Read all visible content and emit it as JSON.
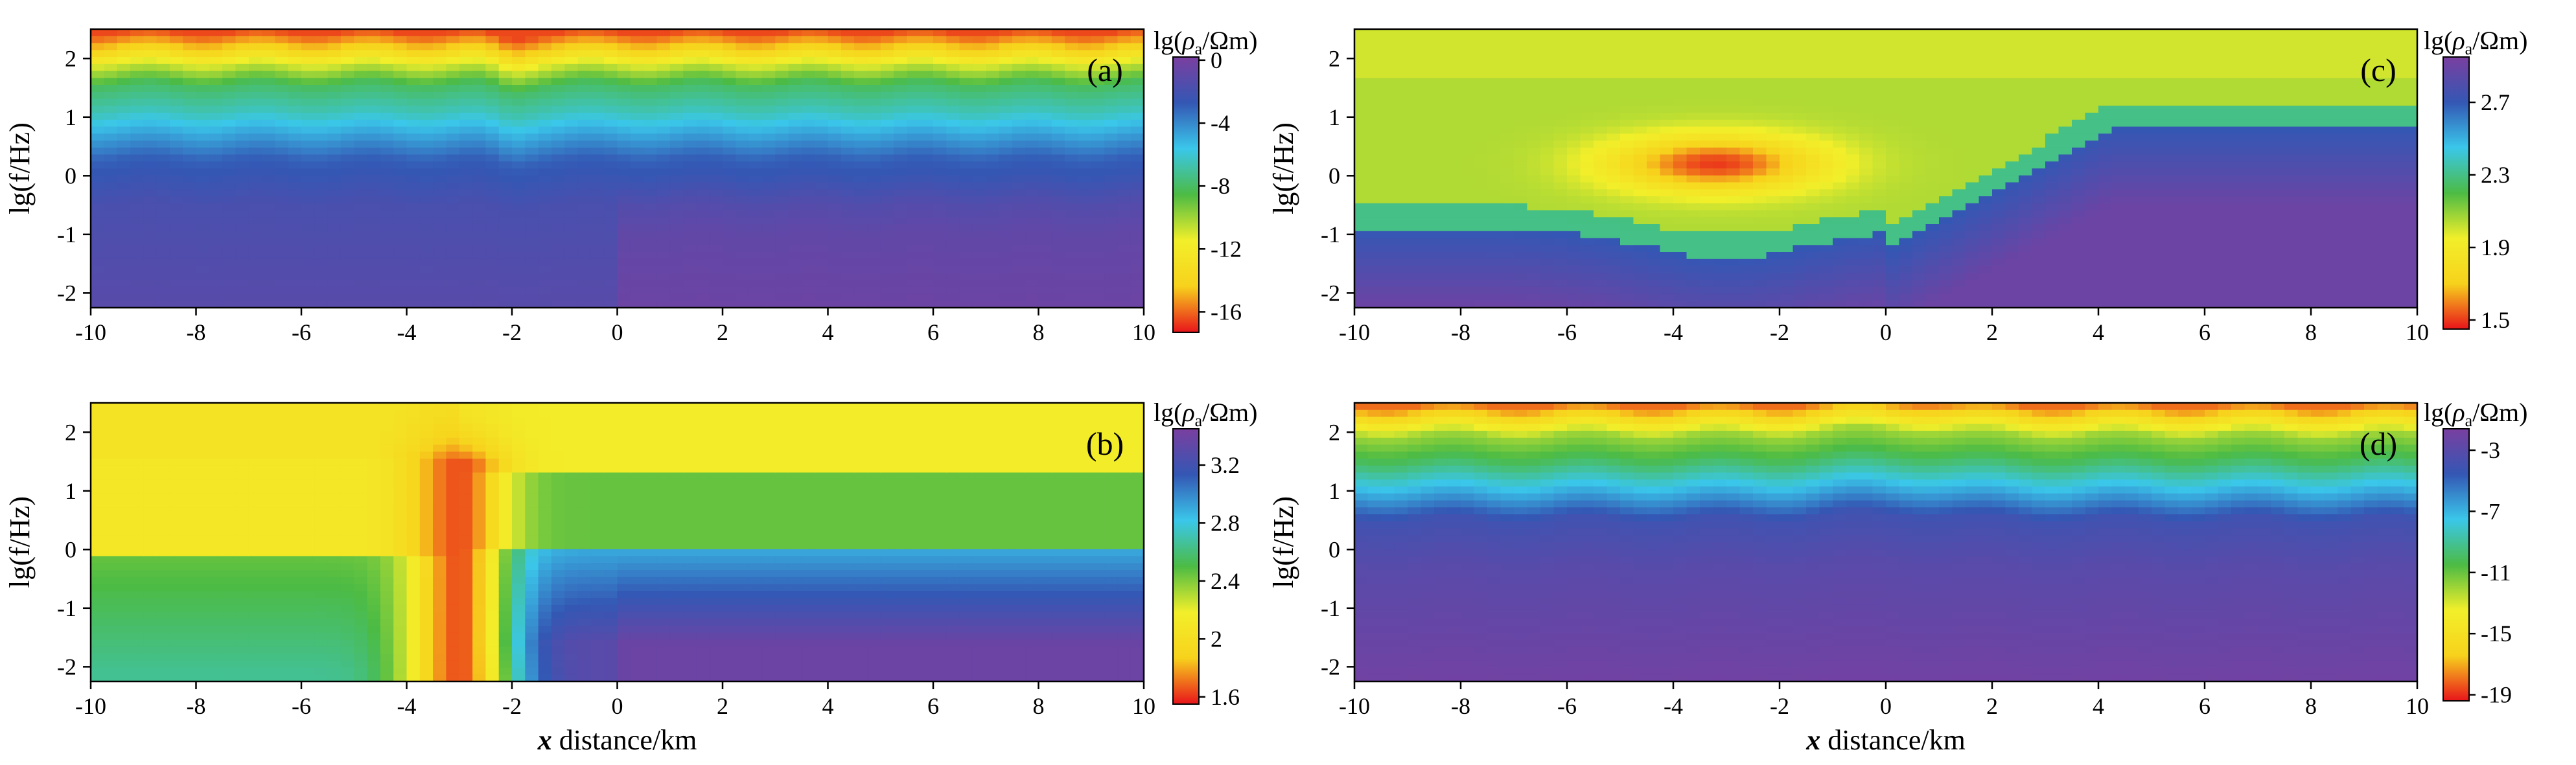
{
  "figure": {
    "xlabel_var": "x",
    "xlabel_rest": " distance/km",
    "colors": {
      "scale": [
        "#e8141b",
        "#f7d21c",
        "#f2ef2a",
        "#4cbb44",
        "#3ac7ea",
        "#3457b4",
        "#7a3fa0"
      ]
    }
  },
  "chart_data": [
    {
      "type": "heatmap",
      "panel": "(a)",
      "xlabel_var": "",
      "xlabel_rest": "",
      "ylabel": "lg(f/Hz)",
      "xlim": [
        -10,
        10
      ],
      "ylim": [
        -2.25,
        2.5
      ],
      "x_ticks": [
        -10,
        -8,
        -6,
        -4,
        -2,
        0,
        2,
        4,
        6,
        8,
        10
      ],
      "y_ticks": [
        2,
        1,
        0,
        -1,
        -2
      ],
      "colorbar": {
        "title": "lg(ρa/Ωm)",
        "ticks": [
          0,
          -4,
          -8,
          -12,
          -16
        ],
        "range": [
          -17.3,
          0.2
        ]
      },
      "description_bands": [
        {
          "lgf": 2.45,
          "value": -16.5
        },
        {
          "lgf": 2.15,
          "value": -14
        },
        {
          "lgf": 1.9,
          "value": -11
        },
        {
          "lgf": 1.55,
          "value": -8
        },
        {
          "lgf": 1.1,
          "value": -6.5
        },
        {
          "lgf": 0.65,
          "value": -4.5
        },
        {
          "lgf": 0.3,
          "value": -3
        },
        {
          "lgf": -0.5,
          "value": -1.8
        },
        {
          "lgf": -2.25,
          "value": -1.2
        }
      ]
    },
    {
      "type": "heatmap",
      "panel": "(b)",
      "xlabel_var": "x",
      "xlabel_rest": " distance/km",
      "ylabel": "lg(f/Hz)",
      "xlim": [
        -10,
        10
      ],
      "ylim": [
        -2.25,
        2.5
      ],
      "x_ticks": [
        -10,
        -8,
        -6,
        -4,
        -2,
        0,
        2,
        4,
        6,
        8,
        10
      ],
      "y_ticks": [
        2,
        1,
        0,
        -1,
        -2
      ],
      "colorbar": {
        "title": "lg(ρa/Ωm)",
        "ticks": [
          3.2,
          2.8,
          2.4,
          2,
          1.6
        ],
        "range": [
          1.55,
          3.45
        ]
      },
      "anomaly": {
        "x_center": -3,
        "value": 1.65
      }
    },
    {
      "type": "heatmap",
      "panel": "(c)",
      "xlabel_var": "",
      "xlabel_rest": "",
      "ylabel": "lg(f/Hz)",
      "xlim": [
        -10,
        10
      ],
      "ylim": [
        -2.25,
        2.5
      ],
      "x_ticks": [
        -10,
        -8,
        -6,
        -4,
        -2,
        0,
        2,
        4,
        6,
        8,
        10
      ],
      "y_ticks": [
        2,
        1,
        0,
        -1,
        -2
      ],
      "colorbar": {
        "title": "lg(ρa/Ωm)",
        "ticks": [
          2.7,
          2.3,
          1.9,
          1.5
        ],
        "range": [
          1.45,
          2.95
        ]
      },
      "anomaly": {
        "x_center": -3.2,
        "lgf_center": 0.2,
        "value": 1.5
      }
    },
    {
      "type": "heatmap",
      "panel": "(d)",
      "xlabel_var": "x",
      "xlabel_rest": " distance/km",
      "ylabel": "lg(f/Hz)",
      "xlim": [
        -10,
        10
      ],
      "ylim": [
        -2.25,
        2.5
      ],
      "x_ticks": [
        -10,
        -8,
        -6,
        -4,
        -2,
        0,
        2,
        4,
        6,
        8,
        10
      ],
      "y_ticks": [
        2,
        1,
        0,
        -1,
        -2
      ],
      "colorbar": {
        "title": "lg(ρa/Ωm)",
        "ticks": [
          -3,
          -7,
          -11,
          -15,
          -19
        ],
        "range": [
          -19.4,
          -1.6
        ]
      },
      "description_bands": [
        {
          "lgf": 2.45,
          "value": -18
        },
        {
          "lgf": 2.2,
          "value": -15
        },
        {
          "lgf": 1.95,
          "value": -12
        },
        {
          "lgf": 1.5,
          "value": -10
        },
        {
          "lgf": 1.0,
          "value": -7
        },
        {
          "lgf": 0.5,
          "value": -4
        },
        {
          "lgf": -0.3,
          "value": -3
        },
        {
          "lgf": -2.25,
          "value": -2
        }
      ]
    }
  ]
}
